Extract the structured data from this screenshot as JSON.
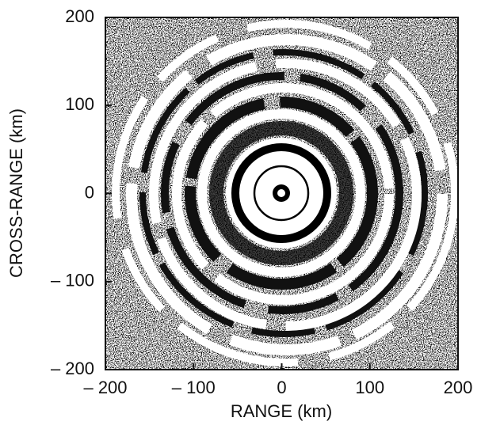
{
  "chart_data": {
    "type": "image",
    "xlabel": "RANGE (km)",
    "ylabel": "CROSS-RANGE (km)",
    "xlim": [
      -200,
      200
    ],
    "ylim": [
      -200,
      200
    ],
    "xticks": [
      {
        "value": -200,
        "label": "– 200"
      },
      {
        "value": -100,
        "label": "– 100"
      },
      0,
      100,
      200
    ],
    "yticks": [
      {
        "value": -200,
        "label": "– 200"
      },
      {
        "value": -100,
        "label": "– 100"
      },
      0,
      100,
      200
    ]
  }
}
